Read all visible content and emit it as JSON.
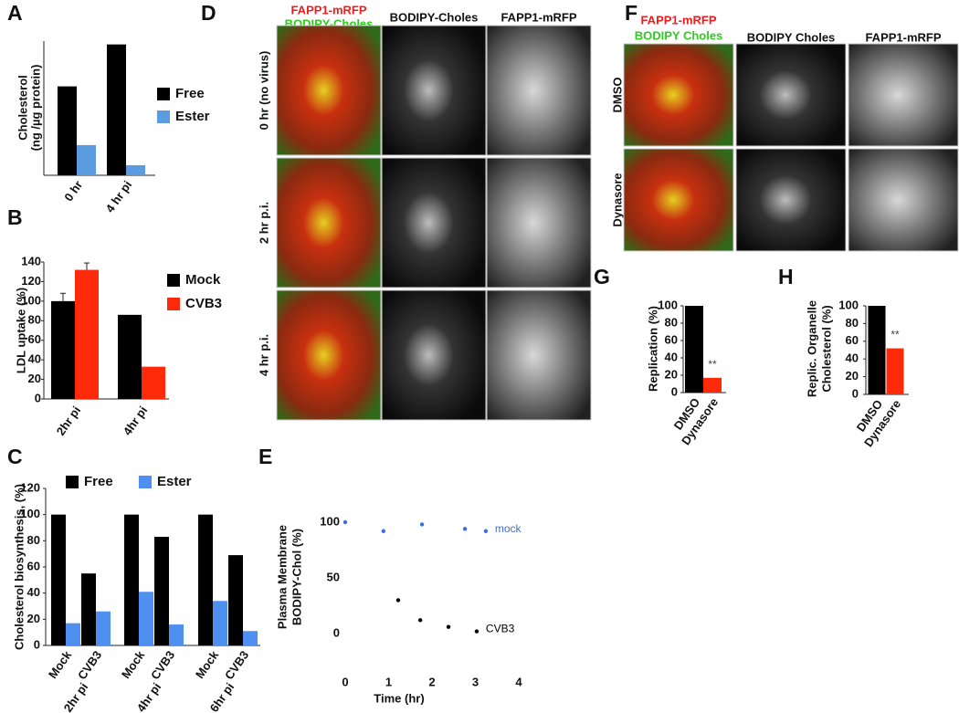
{
  "chart_data": [
    {
      "panel": "A",
      "type": "bar",
      "y_label": [
        "Cholesterol",
        "(ng /µg protein)"
      ],
      "categories": [
        "0 hr",
        "4 hr pi"
      ],
      "series": [
        {
          "name": "Free",
          "color": "#000000",
          "values": [
            53,
            78
          ]
        },
        {
          "name": "Ester",
          "color": "#5b9be0",
          "values": [
            18,
            6
          ]
        }
      ],
      "ylim": [
        0,
        80
      ]
    },
    {
      "panel": "B",
      "type": "bar",
      "y_label": [
        "LDL  uptake (%)"
      ],
      "categories": [
        "2hr pi",
        "4hr pi"
      ],
      "series": [
        {
          "name": "Mock",
          "color": "#000000",
          "values": [
            100,
            86
          ],
          "errors": [
            8,
            null
          ]
        },
        {
          "name": "CVB3",
          "color": "#ff2a0a",
          "values": [
            132,
            33
          ],
          "errors": [
            7,
            null
          ]
        }
      ],
      "ylim": [
        0,
        140
      ],
      "yticks": [
        0,
        20,
        40,
        60,
        80,
        100,
        120,
        140
      ]
    },
    {
      "panel": "C",
      "type": "bar",
      "y_label": [
        "Cholesterol biosynthesis, (%)"
      ],
      "categories": [
        "Mock",
        "CVB3",
        "Mock",
        "CVB3",
        "Mock",
        "CVB3"
      ],
      "groups": [
        "2hr pi",
        "4hr pi",
        "6hr pi"
      ],
      "series": [
        {
          "name": "Free",
          "color": "#000000",
          "values": [
            100,
            55,
            100,
            83,
            100,
            69
          ]
        },
        {
          "name": "Ester",
          "color": "#4f8ff0",
          "values": [
            17,
            26,
            41,
            16,
            34,
            11
          ]
        }
      ],
      "ylim": [
        0,
        120
      ],
      "yticks": [
        0,
        20,
        40,
        60,
        80,
        100,
        120
      ]
    },
    {
      "panel": "E",
      "type": "scatter",
      "y_label": [
        "Plasma Membrane",
        "BODIPY-Chol (%)"
      ],
      "x_label": "Time (hr)",
      "series": [
        {
          "name": "mock",
          "color": "#3a6fe0",
          "x": [
            0,
            0.88,
            1.77,
            2.76,
            3.24
          ],
          "values": [
            100,
            92,
            98,
            94,
            92
          ]
        },
        {
          "name": "CVB3",
          "color": "#000000",
          "x": [
            1.22,
            1.73,
            2.38,
            3.03
          ],
          "values": [
            30,
            12,
            6,
            2
          ]
        }
      ],
      "xlim": [
        0,
        4
      ],
      "xticks": [
        0,
        1,
        2,
        3,
        4
      ],
      "ylim": [
        0,
        100
      ],
      "yticks": [
        0,
        50,
        100
      ]
    },
    {
      "panel": "G",
      "type": "bar",
      "y_label": [
        "Replication  (%)"
      ],
      "categories": [
        "DMSO",
        "Dynasore"
      ],
      "values": [
        100,
        17
      ],
      "colors": [
        "#000000",
        "#ff2a0a"
      ],
      "annotation": "**",
      "ylim": [
        0,
        100
      ],
      "yticks": [
        0,
        20,
        40,
        60,
        80,
        100
      ]
    },
    {
      "panel": "H",
      "type": "bar",
      "y_label": [
        "Replic. Organelle",
        "Cholesterol (%)"
      ],
      "categories": [
        "DMSO",
        "Dynasore"
      ],
      "values": [
        100,
        52
      ],
      "colors": [
        "#000000",
        "#ff2a0a"
      ],
      "annotation": "**",
      "ylim": [
        0,
        100
      ],
      "yticks": [
        0,
        20,
        40,
        60,
        80,
        100
      ]
    }
  ],
  "images": [
    {
      "panel": "D",
      "column_labels": [
        [
          "FAPP1-mRFP",
          "BODIPY-Choles"
        ],
        [
          "BODIPY-Choles"
        ],
        [
          "FAPP1-mRFP"
        ]
      ],
      "row_labels": [
        "0 hr (no virus)",
        "2 hr p.i.",
        "4 hr p.i."
      ]
    },
    {
      "panel": "F",
      "column_labels": [
        [
          "FAPP1-mRFP",
          "BODIPY Choles"
        ],
        [
          "BODIPY Choles"
        ],
        [
          "FAPP1-mRFP"
        ]
      ],
      "row_labels": [
        "DMSO",
        "Dynasore"
      ]
    }
  ]
}
